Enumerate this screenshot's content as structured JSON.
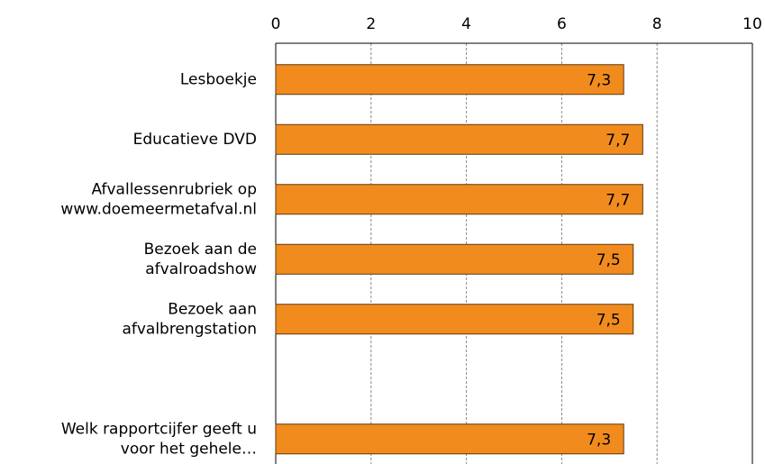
{
  "chart_data": {
    "type": "bar",
    "orientation": "horizontal",
    "categories": [
      [
        "Lesboekje"
      ],
      [
        "Educatieve DVD"
      ],
      [
        "Afvallessenrubriek op",
        "www.doemeermetafval.nl"
      ],
      [
        "Bezoek aan de",
        "afvalroadshow"
      ],
      [
        "Bezoek aan",
        "afvalbrengstation"
      ],
      null,
      [
        "Welk rapportcijfer geeft u",
        "voor het gehele…"
      ]
    ],
    "values": [
      7.3,
      7.7,
      7.7,
      7.5,
      7.5,
      null,
      7.3
    ],
    "value_labels": [
      "7,3",
      "7,7",
      "7,7",
      "7,5",
      "7,5",
      null,
      "7,3"
    ],
    "color": "#f28b1e",
    "xlim": [
      0,
      10
    ],
    "xticks": [
      0,
      2,
      4,
      6,
      8,
      10
    ],
    "grid": true
  }
}
